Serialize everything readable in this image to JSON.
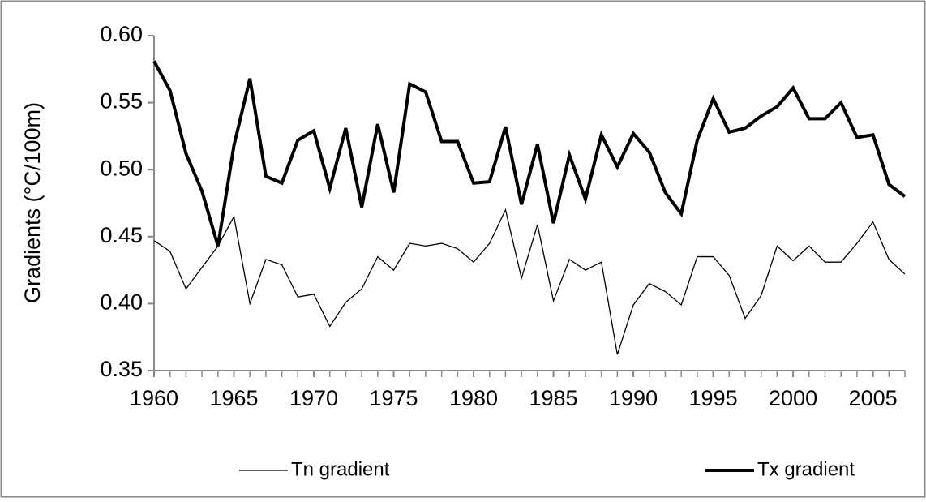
{
  "chart_data": {
    "type": "line",
    "y_label": "Gradients (°C/100m)",
    "x": [
      1960,
      1961,
      1962,
      1963,
      1964,
      1965,
      1966,
      1967,
      1968,
      1969,
      1970,
      1971,
      1972,
      1973,
      1974,
      1975,
      1976,
      1977,
      1978,
      1979,
      1980,
      1981,
      1982,
      1983,
      1984,
      1985,
      1986,
      1987,
      1988,
      1989,
      1990,
      1991,
      1992,
      1993,
      1994,
      1995,
      1996,
      1997,
      1998,
      1999,
      2000,
      2001,
      2002,
      2003,
      2004,
      2005,
      2006,
      2007
    ],
    "series": [
      {
        "name": "Tn gradient",
        "color": "#000000",
        "width": 1.3,
        "values": [
          0.447,
          0.439,
          0.411,
          0.427,
          0.443,
          0.465,
          0.4,
          0.433,
          0.429,
          0.405,
          0.407,
          0.383,
          0.401,
          0.411,
          0.435,
          0.425,
          0.445,
          0.443,
          0.445,
          0.441,
          0.431,
          0.445,
          0.47,
          0.419,
          0.459,
          0.402,
          0.433,
          0.425,
          0.431,
          0.362,
          0.399,
          0.415,
          0.409,
          0.399,
          0.435,
          0.435,
          0.421,
          0.389,
          0.406,
          0.443,
          0.432,
          0.443,
          0.431,
          0.431,
          0.445,
          0.461,
          0.433,
          0.422
        ]
      },
      {
        "name": "Tx gradient",
        "color": "#000000",
        "width": 4,
        "values": [
          0.581,
          0.559,
          0.512,
          0.484,
          0.443,
          0.518,
          0.568,
          0.495,
          0.49,
          0.522,
          0.529,
          0.486,
          0.531,
          0.472,
          0.534,
          0.483,
          0.564,
          0.558,
          0.521,
          0.521,
          0.49,
          0.491,
          0.532,
          0.474,
          0.519,
          0.46,
          0.511,
          0.478,
          0.526,
          0.502,
          0.527,
          0.513,
          0.483,
          0.467,
          0.522,
          0.553,
          0.528,
          0.531,
          0.54,
          0.547,
          0.561,
          0.538,
          0.538,
          0.55,
          0.524,
          0.526,
          0.489,
          0.48
        ]
      }
    ],
    "xlim": [
      1960,
      2007
    ],
    "xticks": [
      1960,
      1965,
      1970,
      1975,
      1980,
      1985,
      1990,
      1995,
      2000,
      2005
    ],
    "ylim": [
      0.35,
      0.6
    ],
    "yticks": [
      {
        "value": 0.35,
        "label": "0.35"
      },
      {
        "value": 0.4,
        "label": "0.40"
      },
      {
        "value": 0.45,
        "label": "0.45"
      },
      {
        "value": 0.5,
        "label": "0.50"
      },
      {
        "value": 0.55,
        "label": "0.55"
      },
      {
        "value": 0.6,
        "label": "0.60"
      }
    ],
    "grid": false,
    "legend": "bottom"
  }
}
